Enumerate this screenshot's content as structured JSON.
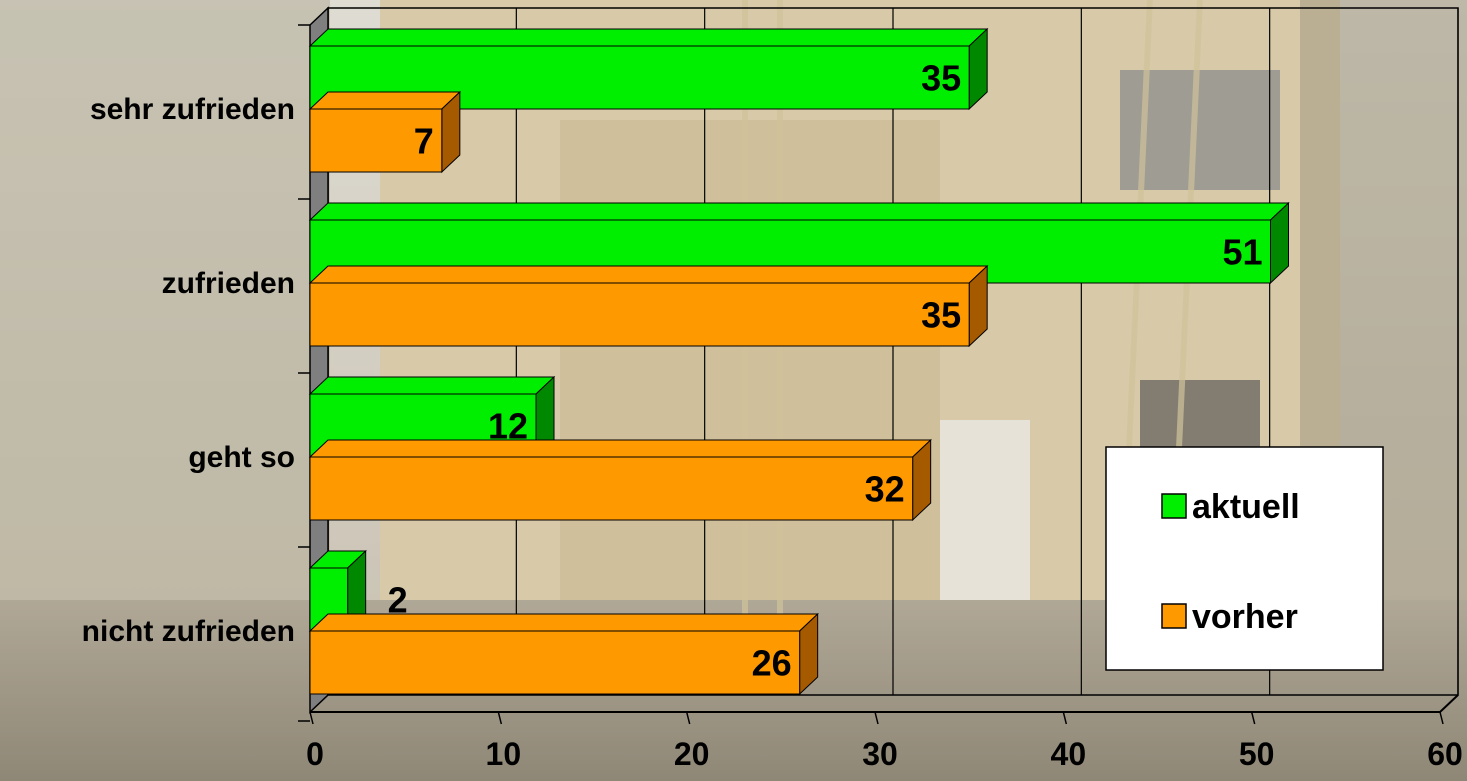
{
  "chart_data": {
    "type": "bar",
    "orientation": "horizontal",
    "style": "3d",
    "title": "",
    "xlabel": "",
    "ylabel": "",
    "categories": [
      "sehr zufrieden",
      "zufrieden",
      "geht so",
      "nicht zufrieden"
    ],
    "series": [
      {
        "name": "aktuell",
        "values": [
          35,
          51,
          12,
          2
        ],
        "color": "#00EE00",
        "side_color": "#008800"
      },
      {
        "name": "vorher",
        "values": [
          7,
          35,
          32,
          26
        ],
        "color": "#FF9900",
        "side_color": "#A55A00"
      }
    ],
    "xlim": [
      0,
      60
    ],
    "xticks": [
      0,
      10,
      20,
      30,
      40,
      50,
      60
    ],
    "grid": true,
    "legend_position": "bottom-right",
    "background": "photo of a building facade under renovation"
  }
}
